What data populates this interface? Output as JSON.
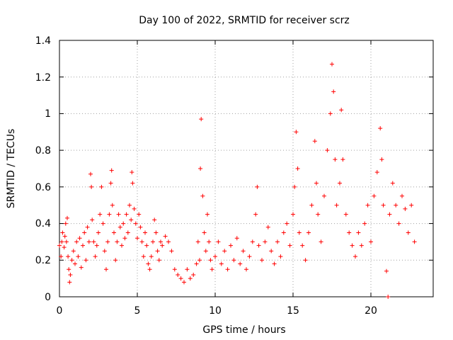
{
  "chart_data": {
    "type": "scatter",
    "title": "Day 100 of 2022, SRMTID for receiver scrz",
    "xlabel": "GPS time / hours",
    "ylabel": "SRMTID / TECUs",
    "xlim": [
      0,
      24
    ],
    "ylim": [
      0,
      1.4
    ],
    "xticks": [
      0,
      5,
      10,
      15,
      20
    ],
    "xtick_labels": [
      "0",
      "5",
      "10",
      "15",
      "20"
    ],
    "yticks": [
      0,
      0.2,
      0.4,
      0.6,
      0.8,
      1.0,
      1.2,
      1.4
    ],
    "ytick_labels": [
      "0",
      "0.2",
      "0.4",
      "0.6",
      "0.8",
      "1",
      "1.2",
      "1.4"
    ],
    "grid": true,
    "marker": "+",
    "series": [
      {
        "name": "SRMTID",
        "color": "#ff0000",
        "points": [
          [
            0.0,
            0.28
          ],
          [
            0.1,
            0.22
          ],
          [
            0.15,
            0.3
          ],
          [
            0.2,
            0.35
          ],
          [
            0.3,
            0.27
          ],
          [
            0.35,
            0.33
          ],
          [
            0.4,
            0.4
          ],
          [
            0.45,
            0.3
          ],
          [
            0.5,
            0.43
          ],
          [
            0.55,
            0.22
          ],
          [
            0.6,
            0.15
          ],
          [
            0.65,
            0.08
          ],
          [
            0.7,
            0.12
          ],
          [
            0.8,
            0.2
          ],
          [
            0.9,
            0.25
          ],
          [
            1.0,
            0.18
          ],
          [
            1.1,
            0.3
          ],
          [
            1.2,
            0.22
          ],
          [
            1.3,
            0.32
          ],
          [
            1.4,
            0.16
          ],
          [
            1.5,
            0.28
          ],
          [
            1.6,
            0.35
          ],
          [
            1.7,
            0.2
          ],
          [
            1.8,
            0.38
          ],
          [
            1.9,
            0.3
          ],
          [
            2.0,
            0.67
          ],
          [
            2.05,
            0.6
          ],
          [
            2.1,
            0.42
          ],
          [
            2.2,
            0.3
          ],
          [
            2.3,
            0.22
          ],
          [
            2.4,
            0.28
          ],
          [
            2.5,
            0.35
          ],
          [
            2.6,
            0.45
          ],
          [
            2.7,
            0.6
          ],
          [
            2.8,
            0.4
          ],
          [
            2.9,
            0.25
          ],
          [
            3.0,
            0.15
          ],
          [
            3.1,
            0.3
          ],
          [
            3.2,
            0.45
          ],
          [
            3.3,
            0.62
          ],
          [
            3.35,
            0.69
          ],
          [
            3.4,
            0.5
          ],
          [
            3.5,
            0.35
          ],
          [
            3.6,
            0.2
          ],
          [
            3.7,
            0.3
          ],
          [
            3.8,
            0.45
          ],
          [
            3.9,
            0.38
          ],
          [
            4.0,
            0.28
          ],
          [
            4.1,
            0.4
          ],
          [
            4.2,
            0.32
          ],
          [
            4.3,
            0.45
          ],
          [
            4.4,
            0.35
          ],
          [
            4.5,
            0.5
          ],
          [
            4.6,
            0.42
          ],
          [
            4.65,
            0.68
          ],
          [
            4.7,
            0.62
          ],
          [
            4.8,
            0.48
          ],
          [
            4.9,
            0.4
          ],
          [
            5.0,
            0.32
          ],
          [
            5.1,
            0.45
          ],
          [
            5.2,
            0.38
          ],
          [
            5.3,
            0.3
          ],
          [
            5.4,
            0.22
          ],
          [
            5.5,
            0.35
          ],
          [
            5.6,
            0.28
          ],
          [
            5.7,
            0.18
          ],
          [
            5.8,
            0.15
          ],
          [
            5.9,
            0.22
          ],
          [
            6.0,
            0.3
          ],
          [
            6.1,
            0.42
          ],
          [
            6.2,
            0.35
          ],
          [
            6.3,
            0.25
          ],
          [
            6.4,
            0.2
          ],
          [
            6.5,
            0.3
          ],
          [
            6.6,
            0.28
          ],
          [
            6.8,
            0.33
          ],
          [
            7.0,
            0.3
          ],
          [
            7.2,
            0.25
          ],
          [
            7.4,
            0.15
          ],
          [
            7.6,
            0.12
          ],
          [
            7.8,
            0.1
          ],
          [
            8.0,
            0.08
          ],
          [
            8.2,
            0.15
          ],
          [
            8.4,
            0.1
          ],
          [
            8.6,
            0.12
          ],
          [
            8.8,
            0.18
          ],
          [
            8.9,
            0.3
          ],
          [
            9.0,
            0.2
          ],
          [
            9.05,
            0.7
          ],
          [
            9.1,
            0.97
          ],
          [
            9.2,
            0.55
          ],
          [
            9.3,
            0.35
          ],
          [
            9.4,
            0.25
          ],
          [
            9.5,
            0.45
          ],
          [
            9.6,
            0.3
          ],
          [
            9.7,
            0.2
          ],
          [
            9.8,
            0.15
          ],
          [
            10.0,
            0.22
          ],
          [
            10.2,
            0.3
          ],
          [
            10.4,
            0.18
          ],
          [
            10.6,
            0.25
          ],
          [
            10.8,
            0.15
          ],
          [
            11.0,
            0.28
          ],
          [
            11.2,
            0.2
          ],
          [
            11.4,
            0.32
          ],
          [
            11.6,
            0.18
          ],
          [
            11.8,
            0.25
          ],
          [
            12.0,
            0.15
          ],
          [
            12.2,
            0.22
          ],
          [
            12.4,
            0.3
          ],
          [
            12.6,
            0.45
          ],
          [
            12.7,
            0.6
          ],
          [
            12.8,
            0.28
          ],
          [
            13.0,
            0.2
          ],
          [
            13.2,
            0.3
          ],
          [
            13.4,
            0.38
          ],
          [
            13.6,
            0.25
          ],
          [
            13.8,
            0.18
          ],
          [
            14.0,
            0.3
          ],
          [
            14.2,
            0.22
          ],
          [
            14.4,
            0.35
          ],
          [
            14.6,
            0.4
          ],
          [
            14.8,
            0.28
          ],
          [
            15.0,
            0.45
          ],
          [
            15.1,
            0.6
          ],
          [
            15.2,
            0.9
          ],
          [
            15.3,
            0.7
          ],
          [
            15.4,
            0.35
          ],
          [
            15.6,
            0.28
          ],
          [
            15.8,
            0.2
          ],
          [
            16.0,
            0.35
          ],
          [
            16.2,
            0.5
          ],
          [
            16.4,
            0.85
          ],
          [
            16.5,
            0.62
          ],
          [
            16.6,
            0.45
          ],
          [
            16.8,
            0.3
          ],
          [
            17.0,
            0.55
          ],
          [
            17.2,
            0.8
          ],
          [
            17.4,
            1.0
          ],
          [
            17.5,
            1.27
          ],
          [
            17.6,
            1.12
          ],
          [
            17.7,
            0.75
          ],
          [
            17.8,
            0.5
          ],
          [
            18.0,
            0.62
          ],
          [
            18.1,
            1.02
          ],
          [
            18.2,
            0.75
          ],
          [
            18.4,
            0.45
          ],
          [
            18.6,
            0.35
          ],
          [
            18.8,
            0.28
          ],
          [
            19.0,
            0.22
          ],
          [
            19.2,
            0.35
          ],
          [
            19.4,
            0.28
          ],
          [
            19.6,
            0.4
          ],
          [
            19.8,
            0.5
          ],
          [
            20.0,
            0.3
          ],
          [
            20.2,
            0.55
          ],
          [
            20.4,
            0.68
          ],
          [
            20.6,
            0.92
          ],
          [
            20.7,
            0.75
          ],
          [
            20.8,
            0.5
          ],
          [
            21.0,
            0.14
          ],
          [
            21.1,
            0.0
          ],
          [
            21.2,
            0.45
          ],
          [
            21.4,
            0.62
          ],
          [
            21.6,
            0.5
          ],
          [
            21.8,
            0.4
          ],
          [
            22.0,
            0.55
          ],
          [
            22.2,
            0.48
          ],
          [
            22.4,
            0.35
          ],
          [
            22.6,
            0.5
          ],
          [
            22.8,
            0.3
          ]
        ]
      }
    ]
  }
}
